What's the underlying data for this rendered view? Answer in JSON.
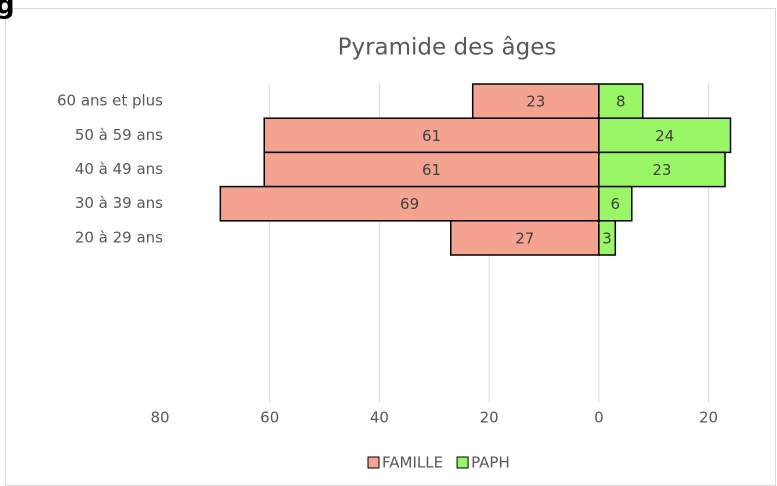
{
  "heading": "g",
  "chart_data": {
    "type": "pyramid",
    "title": "Pyramide des âges",
    "categories": [
      "60 ans et plus",
      "50 à 59 ans",
      "40 à 49 ans",
      "30 à 39 ans",
      "20 à 29 ans"
    ],
    "series": [
      {
        "name": "FAMILLE",
        "color": "#f4a390",
        "values": [
          -23,
          -61,
          -61,
          -69,
          -27
        ],
        "value_labels": [
          "23",
          "61",
          "61",
          "69",
          "27"
        ]
      },
      {
        "name": "PAPH",
        "color": "#99f766",
        "values": [
          8,
          24,
          23,
          6,
          3
        ]
      }
    ],
    "xlim": [
      -80,
      25
    ],
    "xticks": [
      {
        "value": -80,
        "label": "80"
      },
      {
        "value": -60,
        "label": "60"
      },
      {
        "value": -40,
        "label": "40"
      },
      {
        "value": -20,
        "label": "20"
      },
      0,
      20
    ],
    "grid": true,
    "legend": "bottom"
  }
}
